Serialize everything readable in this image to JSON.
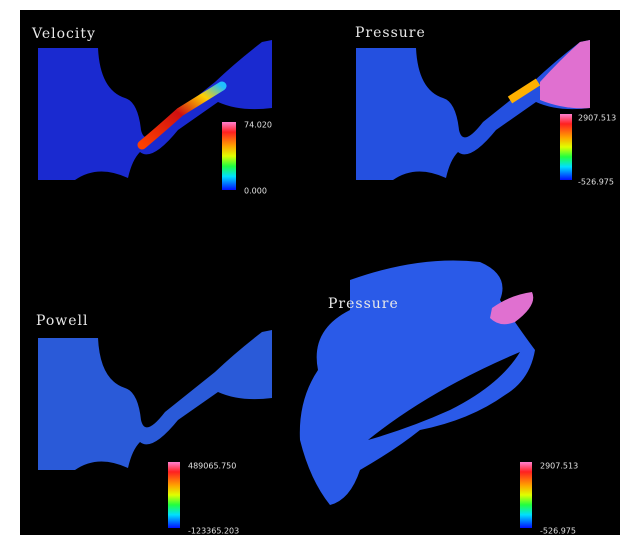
{
  "panels": [
    {
      "title": "Velocity",
      "colorbar": {
        "max": "74.020",
        "min": "0.000"
      }
    },
    {
      "title": "Pressure",
      "colorbar": {
        "max": "2907.513",
        "min": "-526.975"
      }
    },
    {
      "title": "Powell",
      "colorbar": {
        "max": "489065.750",
        "min": "-123365.203"
      }
    },
    {
      "title": "Pressure",
      "colorbar": {
        "max": "2907.513",
        "min": "-526.975"
      }
    }
  ]
}
